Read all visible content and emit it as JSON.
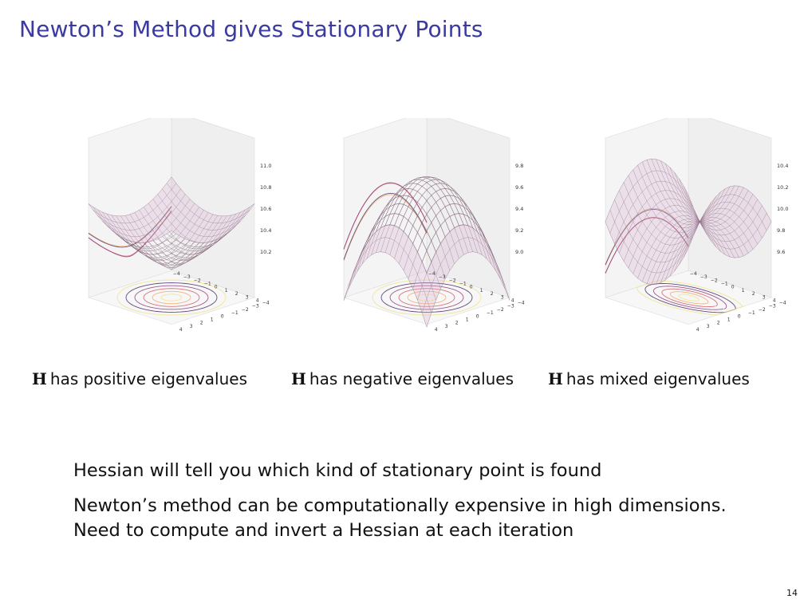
{
  "slide": {
    "title": "Newton’s Method gives Stationary Points",
    "page_number": "14"
  },
  "figures": [
    {
      "kind": "bowl",
      "caption_symbol": "H",
      "caption_text": "has positive eigenvalues",
      "z_ticks": [
        "11.0",
        "10.8",
        "10.6",
        "10.4",
        "10.2"
      ],
      "xy_ticks": [
        "−4",
        "−3",
        "−2",
        "−1",
        "0",
        "1",
        "2",
        "3",
        "4"
      ]
    },
    {
      "kind": "dome",
      "caption_symbol": "H",
      "caption_text": "has negative eigenvalues",
      "z_ticks": [
        "9.8",
        "9.6",
        "9.4",
        "9.2",
        "9.0"
      ],
      "xy_ticks": [
        "−4",
        "−3",
        "−2",
        "−1",
        "0",
        "1",
        "2",
        "3",
        "4"
      ]
    },
    {
      "kind": "saddle",
      "caption_symbol": "H",
      "caption_text": "has mixed eigenvalues",
      "z_ticks": [
        "10.4",
        "10.2",
        "10.0",
        "9.8",
        "9.6"
      ],
      "xy_ticks": [
        "−4",
        "−3",
        "−2",
        "−1",
        "0",
        "1",
        "2",
        "3",
        "4"
      ]
    }
  ],
  "bullets": {
    "line1": "Hessian will tell you which kind of stationary point is found",
    "line2": "Newton’s method can be computationally expensive in high dimensions.",
    "line3": "Need to compute and invert a Hessian at each iteration"
  },
  "colors": {
    "title": "#3a3aa0",
    "surface_fill": "#d8b4d0",
    "contours": [
      "#f0e080",
      "#f2a060",
      "#d05060",
      "#8a3070",
      "#3a2060"
    ]
  }
}
